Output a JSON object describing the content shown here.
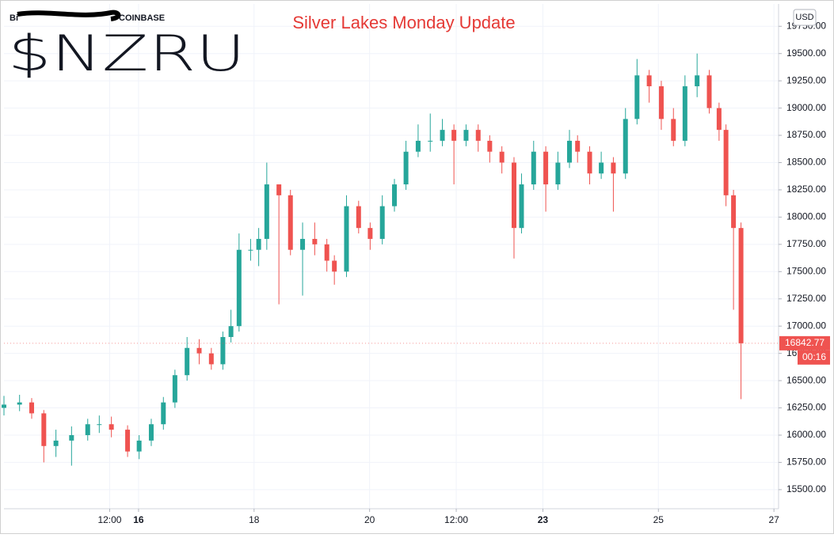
{
  "chart_data": {
    "type": "candlestick",
    "title": "Silver Lakes Monday Update",
    "handwritten_label": "$NZRU",
    "exchange_label": "COINBASE",
    "currency": "USD",
    "countdown": "00:16",
    "up_color": "#26a69a",
    "down_color": "#ef5350",
    "grid": true,
    "xlim": [
      13.67,
      27.08
    ],
    "xticks": [
      {
        "value": 15.5,
        "label": "12:00"
      },
      16,
      18,
      20,
      {
        "value": 21.5,
        "label": "12:00"
      },
      23,
      25,
      27
    ],
    "ylim": [
      15325,
      19955
    ],
    "yticks": [
      {
        "value": 15500,
        "label": "15500.00"
      },
      {
        "value": 15750,
        "label": "15750.00"
      },
      {
        "value": 16000,
        "label": "16000.00"
      },
      {
        "value": 16250,
        "label": "16250.00"
      },
      {
        "value": 16500,
        "label": "16500.00"
      },
      {
        "value": 16750,
        "label": "16750.00"
      },
      {
        "value": 17000,
        "label": "17000.00"
      },
      {
        "value": 17250,
        "label": "17250.00"
      },
      {
        "value": 17500,
        "label": "17500.00"
      },
      {
        "value": 17750,
        "label": "17750.00"
      },
      {
        "value": 18000,
        "label": "18000.00"
      },
      {
        "value": 18250,
        "label": "18250.00"
      },
      {
        "value": 18500,
        "label": "18500.00"
      },
      {
        "value": 18750,
        "label": "18750.00"
      },
      {
        "value": 19000,
        "label": "19000.00"
      },
      {
        "value": 19250,
        "label": "19250.00"
      },
      {
        "value": 19500,
        "label": "19500.00"
      },
      {
        "value": 19750,
        "label": "19750.00"
      }
    ],
    "x": [
      13.67,
      13.94,
      14.15,
      14.36,
      14.57,
      14.84,
      15.12,
      15.32,
      15.53,
      15.81,
      16.01,
      16.22,
      16.43,
      16.63,
      16.84,
      17.05,
      17.26,
      17.46,
      17.6,
      17.74,
      17.94,
      18.08,
      18.22,
      18.43,
      18.63,
      18.84,
      19.05,
      19.26,
      19.39,
      19.6,
      19.81,
      20.01,
      20.22,
      20.43,
      20.63,
      20.84,
      21.05,
      21.26,
      21.46,
      21.67,
      21.88,
      22.08,
      22.29,
      22.5,
      22.63,
      22.84,
      23.05,
      23.26,
      23.46,
      23.6,
      23.81,
      24.01,
      24.22,
      24.43,
      24.63,
      24.84,
      25.05,
      25.26,
      25.46,
      25.67,
      25.88,
      26.05,
      26.17,
      26.3,
      26.43
    ],
    "open": [
      16250,
      16280,
      16300,
      16200,
      15900,
      15950,
      16000,
      16100,
      16100,
      16050,
      15850,
      15950,
      16100,
      16300,
      16550,
      16800,
      16750,
      16650,
      16900,
      17000,
      17700,
      17700,
      17800,
      18300,
      18200,
      17700,
      17800,
      17750,
      17600,
      17500,
      18100,
      17900,
      17800,
      18100,
      18300,
      18600,
      18700,
      18700,
      18800,
      18700,
      18800,
      18700,
      18600,
      18500,
      17900,
      18300,
      18600,
      18300,
      18500,
      18700,
      18600,
      18400,
      18500,
      18400,
      18900,
      19300,
      19200,
      18900,
      18700,
      19200,
      19300,
      19000,
      18800,
      18200,
      17900
    ],
    "high": [
      16360,
      16370,
      16340,
      16230,
      16050,
      16080,
      16150,
      16180,
      16170,
      16090,
      16000,
      16150,
      16350,
      16600,
      16900,
      16880,
      16800,
      16950,
      17150,
      17850,
      17800,
      17900,
      18500,
      18300,
      18250,
      17950,
      17950,
      17800,
      17650,
      18200,
      18150,
      17950,
      18200,
      18350,
      18700,
      18850,
      18950,
      18900,
      18850,
      18850,
      18850,
      18750,
      18650,
      18550,
      18400,
      18700,
      18650,
      18600,
      18800,
      18750,
      18650,
      18600,
      18550,
      19000,
      19450,
      19350,
      19250,
      19000,
      19300,
      19500,
      19350,
      19050,
      18850,
      18250,
      17950
    ],
    "low": [
      16180,
      16220,
      16150,
      15750,
      15800,
      15720,
      15950,
      16020,
      15980,
      15800,
      15780,
      15900,
      16050,
      16250,
      16500,
      16650,
      16600,
      16600,
      16850,
      16950,
      17600,
      17550,
      17700,
      17200,
      17650,
      17280,
      17650,
      17500,
      17380,
      17450,
      17850,
      17700,
      17750,
      18050,
      18250,
      18550,
      18600,
      18650,
      18300,
      18650,
      18600,
      18500,
      18400,
      17620,
      17850,
      18250,
      18050,
      18250,
      18450,
      18500,
      18300,
      18350,
      18050,
      18350,
      18850,
      19050,
      18800,
      18650,
      18650,
      19100,
      18950,
      18700,
      18100,
      17150,
      16330
    ],
    "close": [
      16280,
      16300,
      16200,
      15900,
      15950,
      16000,
      16100,
      16100,
      16050,
      15850,
      15950,
      16100,
      16300,
      16550,
      16800,
      16750,
      16650,
      16900,
      17000,
      17700,
      17700,
      17800,
      18300,
      18200,
      17700,
      17800,
      17750,
      17600,
      17500,
      18100,
      17900,
      17800,
      18100,
      18300,
      18600,
      18700,
      18700,
      18800,
      18700,
      18800,
      18700,
      18600,
      18500,
      17900,
      18300,
      18600,
      18300,
      18500,
      18700,
      18600,
      18400,
      18500,
      18400,
      18900,
      19300,
      19200,
      18900,
      18700,
      19200,
      19300,
      19000,
      18800,
      18200,
      17900,
      16842.77
    ]
  }
}
